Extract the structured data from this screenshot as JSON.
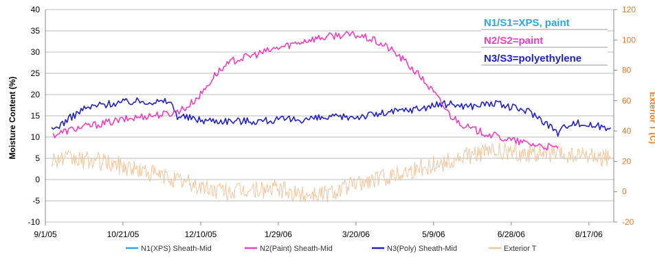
{
  "chart_data": {
    "type": "line",
    "title": "",
    "ylabel": "Moisture Content (%)",
    "y2label": "Exterior T (C)",
    "xlabel": "",
    "ylim": [
      -10,
      40
    ],
    "y2lim": [
      -20,
      120
    ],
    "yticks": [
      "40",
      "35",
      "30",
      "25",
      "20",
      "15",
      "10",
      "5",
      "0",
      "-5",
      "-10"
    ],
    "y2ticks": [
      "120",
      "100",
      "80",
      "60",
      "40",
      "20",
      "0",
      "-20"
    ],
    "xticks": [
      "9/1/05",
      "10/21/05",
      "12/10/05",
      "1/29/06",
      "3/20/06",
      "5/9/06",
      "6/28/06",
      "8/17/06"
    ],
    "grid": true,
    "colors": {
      "n1": "#29a8e0",
      "n2": "#ee3ec2",
      "n3": "#1f1fc8",
      "ext": "#f2c49a",
      "right_axis": "#e07a2e"
    },
    "annotations": [
      {
        "text": "N1/S1=XPS, paint",
        "color": "#29a8e0"
      },
      {
        "text": "N2/S2=paint",
        "color": "#ee3ec2"
      },
      {
        "text": "N3/S3=polyethylene",
        "color": "#1f1fc8"
      }
    ],
    "series": [
      {
        "name": "N1(XPS) Sheath-Mid",
        "axis": "left",
        "x": [],
        "y": []
      },
      {
        "name": "N2(Paint) Sheath-Mid",
        "axis": "left",
        "x": [
          "2005-09-06",
          "2005-09-20",
          "2005-10-05",
          "2005-10-20",
          "2005-11-05",
          "2005-11-20",
          "2005-12-01",
          "2005-12-10",
          "2005-12-20",
          "2005-12-31",
          "2006-01-10",
          "2006-01-20",
          "2006-01-29",
          "2006-02-08",
          "2006-02-18",
          "2006-02-28",
          "2006-03-08",
          "2006-03-20",
          "2006-03-30",
          "2006-04-10",
          "2006-04-20",
          "2006-05-01",
          "2006-05-09",
          "2006-05-20",
          "2006-06-01",
          "2006-06-15",
          "2006-06-28",
          "2006-07-10",
          "2006-07-20",
          "2006-07-28"
        ],
        "y": [
          10.5,
          12,
          13,
          14,
          15,
          15.5,
          17,
          20,
          25,
          28,
          29,
          30,
          31,
          32,
          33,
          33.5,
          34,
          34,
          33,
          31,
          28,
          24,
          20.5,
          15,
          12,
          10.5,
          9.2,
          8.4,
          7.8,
          7.3
        ]
      },
      {
        "name": "N3(Poly) Sheath-Mid",
        "axis": "left",
        "x": [
          "2005-09-05",
          "2005-09-15",
          "2005-09-25",
          "2005-10-05",
          "2005-10-15",
          "2005-10-25",
          "2005-11-05",
          "2005-11-15",
          "2005-11-20",
          "2005-11-25",
          "2005-12-10",
          "2005-12-31",
          "2006-01-15",
          "2006-01-29",
          "2006-02-15",
          "2006-03-01",
          "2006-03-20",
          "2006-04-05",
          "2006-04-20",
          "2006-05-01",
          "2006-05-09",
          "2006-05-20",
          "2006-06-01",
          "2006-06-15",
          "2006-06-28",
          "2006-07-10",
          "2006-07-20",
          "2006-07-28",
          "2006-08-05",
          "2006-08-17",
          "2006-08-31"
        ],
        "y": [
          11.5,
          14,
          16.5,
          17.5,
          18,
          18.3,
          18.5,
          18.2,
          18.5,
          15,
          14,
          13.8,
          13.8,
          14,
          14.2,
          14.5,
          14.8,
          15.5,
          16.3,
          16.8,
          17.5,
          17.8,
          17.2,
          18,
          17,
          16,
          13.5,
          11,
          13.5,
          12.8,
          12.2
        ]
      },
      {
        "name": "Exterior T",
        "axis": "right",
        "x": [
          "2005-09-05",
          "2005-09-20",
          "2005-10-05",
          "2005-10-21",
          "2005-11-05",
          "2005-11-20",
          "2005-12-01",
          "2005-12-10",
          "2005-12-20",
          "2005-12-31",
          "2006-01-10",
          "2006-01-29",
          "2006-02-10",
          "2006-02-20",
          "2006-03-01",
          "2006-03-10",
          "2006-03-20",
          "2006-04-01",
          "2006-04-15",
          "2006-05-01",
          "2006-05-09",
          "2006-05-20",
          "2006-06-01",
          "2006-06-15",
          "2006-06-28",
          "2006-07-10",
          "2006-07-20",
          "2006-08-01",
          "2006-08-17",
          "2006-08-31"
        ],
        "y": [
          22,
          21,
          20,
          17,
          13,
          9,
          6,
          3,
          1,
          0,
          1,
          2,
          -2,
          -1,
          -1,
          2,
          5,
          8,
          12,
          16,
          18,
          20,
          24,
          27,
          26,
          25,
          26,
          24,
          23,
          22
        ]
      }
    ]
  }
}
